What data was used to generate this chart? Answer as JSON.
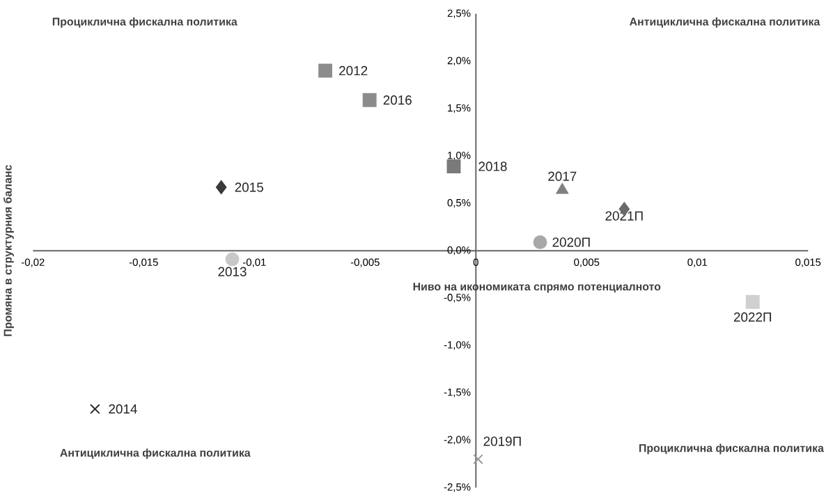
{
  "chart_data": {
    "type": "scatter",
    "xlabel": "Ниво на икономиката спрямо потенциалното",
    "ylabel": "Промяна в структурния баланс",
    "annotations": [
      "Процикличнa фискална политика",
      "Антициклична фискална политика",
      "Антициклична фискална политика",
      "Процикличнa фискална политика"
    ],
    "xlim": [
      -0.02,
      0.015
    ],
    "ylim": [
      -2.5,
      2.5
    ],
    "xticks": [
      {
        "value": -0.02,
        "label": "-0,02"
      },
      {
        "value": -0.015,
        "label": "-0,015"
      },
      {
        "value": -0.01,
        "label": "-0,01"
      },
      {
        "value": -0.005,
        "label": "-0,005"
      },
      {
        "value": 0,
        "label": "0"
      },
      {
        "value": 0.005,
        "label": "0,005"
      },
      {
        "value": 0.01,
        "label": "0,01"
      },
      {
        "value": 0.015,
        "label": "0,015"
      }
    ],
    "yticks": [
      {
        "value": -2.5,
        "label": "-2,5%"
      },
      {
        "value": -2.0,
        "label": "-2,0%"
      },
      {
        "value": -1.5,
        "label": "-1,5%"
      },
      {
        "value": -1.0,
        "label": "-1,0%"
      },
      {
        "value": -0.5,
        "label": "-0,5%"
      },
      {
        "value": 0,
        "label": "0,0%"
      },
      {
        "value": 0.5,
        "label": "0,5%"
      },
      {
        "value": 1.0,
        "label": "1,0%"
      },
      {
        "value": 1.5,
        "label": "1,5%"
      },
      {
        "value": 2.0,
        "label": "2,0%"
      },
      {
        "value": 2.5,
        "label": "2,5%"
      }
    ],
    "grid": false,
    "legend": false,
    "series": [
      {
        "name": "2012",
        "color": "#8c8c8c",
        "marker": "square",
        "x": [
          -0.0068
        ],
        "values": [
          1.9
        ]
      },
      {
        "name": "2016",
        "color": "#8c8c8c",
        "marker": "square",
        "x": [
          -0.0048
        ],
        "values": [
          1.59
        ]
      },
      {
        "name": "2018",
        "color": "#7a7a7a",
        "marker": "square",
        "x": [
          -0.001
        ],
        "values": [
          0.89
        ]
      },
      {
        "name": "2015",
        "color": "#3a3a3a",
        "marker": "diamond",
        "x": [
          -0.0115
        ],
        "values": [
          0.67
        ]
      },
      {
        "name": "2013",
        "color": "#c8c8c8",
        "marker": "circle",
        "x": [
          -0.011
        ],
        "values": [
          -0.09
        ]
      },
      {
        "name": "2017",
        "color": "#808080",
        "marker": "triangle",
        "x": [
          0.0039
        ],
        "values": [
          0.64
        ]
      },
      {
        "name": "2021П",
        "color": "#6a6a6a",
        "marker": "diamond",
        "x": [
          0.0067
        ],
        "values": [
          0.44
        ]
      },
      {
        "name": "2020П",
        "color": "#a8a8a8",
        "marker": "circle",
        "x": [
          0.0029
        ],
        "values": [
          0.09
        ]
      },
      {
        "name": "2022П",
        "color": "#d0d0d0",
        "marker": "square",
        "x": [
          0.0125
        ],
        "values": [
          -0.54
        ]
      },
      {
        "name": "2014",
        "color": "#2a2a2a",
        "marker": "cross",
        "x": [
          -0.0172
        ],
        "values": [
          -1.67
        ]
      },
      {
        "name": "2019П",
        "color": "#9a9a9a",
        "marker": "cross",
        "x": [
          0.0001
        ],
        "values": [
          -2.2
        ]
      }
    ]
  }
}
